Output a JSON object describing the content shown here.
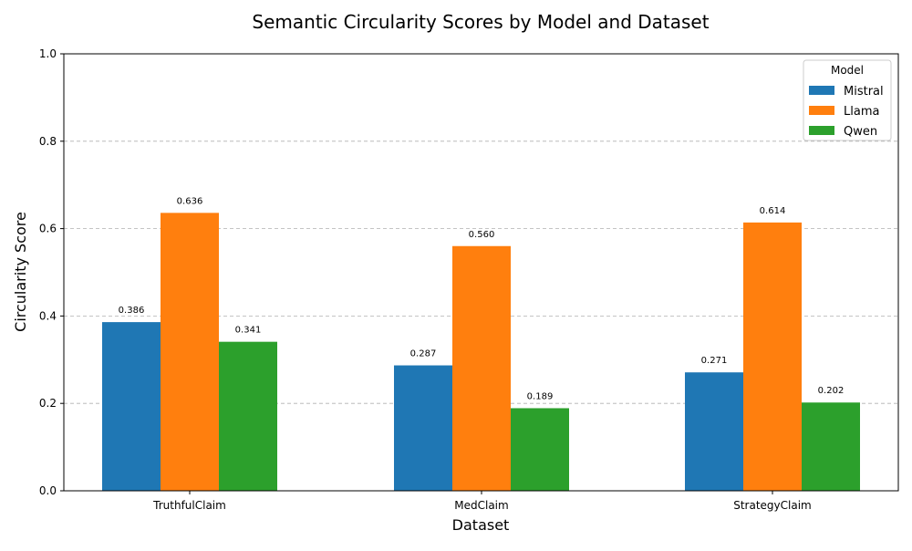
{
  "chart_data": {
    "type": "bar",
    "title": "Semantic Circularity Scores by Model and Dataset",
    "xlabel": "Dataset",
    "ylabel": "Circularity Score",
    "categories": [
      "TruthfulClaim",
      "MedClaim",
      "StrategyClaim"
    ],
    "series": [
      {
        "name": "Mistral",
        "color": "#1f77b4",
        "values": [
          0.386,
          0.287,
          0.271
        ]
      },
      {
        "name": "Llama",
        "color": "#ff7f0e",
        "values": [
          0.636,
          0.56,
          0.614
        ]
      },
      {
        "name": "Qwen",
        "color": "#2ca02c",
        "values": [
          0.341,
          0.189,
          0.202
        ]
      }
    ],
    "data_labels": [
      [
        "0.386",
        "0.287",
        "0.271"
      ],
      [
        "0.636",
        "0.560",
        "0.614"
      ],
      [
        "0.341",
        "0.189",
        "0.202"
      ]
    ],
    "ylim": [
      0,
      1.0
    ],
    "yticks": [
      0.0,
      0.2,
      0.4,
      0.6,
      0.8,
      1.0
    ],
    "ytick_labels": [
      "0.0",
      "0.2",
      "0.4",
      "0.6",
      "0.8",
      "1.0"
    ],
    "grid": "y-dashed",
    "legend": {
      "title": "Model",
      "position": "top-right"
    }
  }
}
